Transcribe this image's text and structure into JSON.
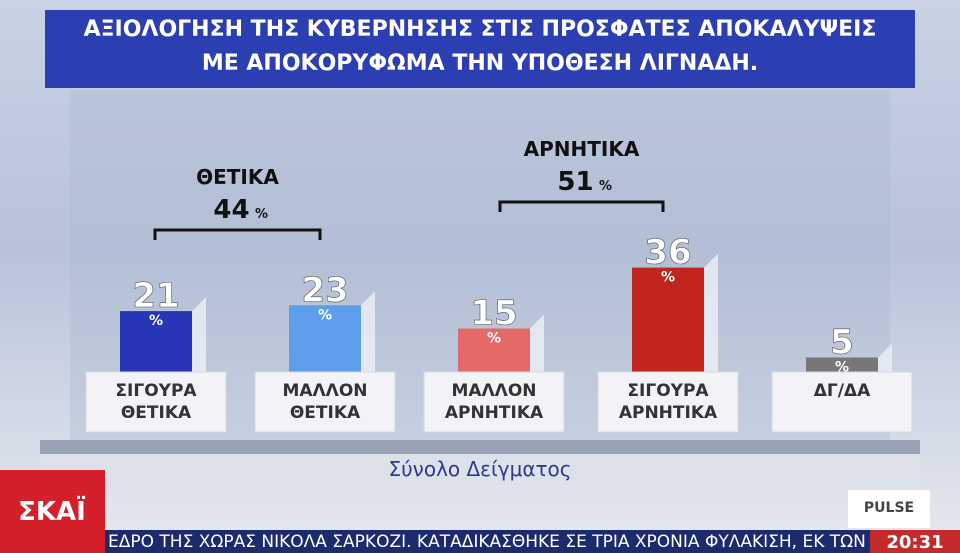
{
  "chart_data": {
    "type": "bar",
    "title": [
      "ΑΞΙΟΛΟΓΗΣΗ ΤΗΣ ΚΥΒΕΡΝΗΣΗΣ ΣΤΙΣ ΠΡΟΣΦΑΤΕΣ ΑΠΟΚΑΛΥΨΕΙΣ",
      "ΜΕ ΑΠΟΚΟΡΥΦΩΜΑ ΤΗΝ ΥΠΟΘΕΣΗ ΛΙΓΝΑΔΗ."
    ],
    "categories": [
      "ΣΙΓΟΥΡΑ ΘΕΤΙΚΑ",
      "ΜΑΛΛΟΝ ΘΕΤΙΚΑ",
      "ΜΑΛΛΟΝ ΑΡΝΗΤΙΚΑ",
      "ΣΙΓΟΥΡΑ ΑΡΝΗΤΙΚΑ",
      "ΔΓ/ΔΑ"
    ],
    "values": [
      21,
      23,
      15,
      36,
      5
    ],
    "unit": "%",
    "colors": [
      "#2836b8",
      "#5c9eec",
      "#e46a68",
      "#c0261e",
      "#777777"
    ],
    "groups": [
      {
        "label": "ΘΕΤΙΚΑ",
        "value": 44
      },
      {
        "label": "ΑΡΝΗΤΙΚΑ",
        "value": 51
      }
    ],
    "subtitle": "Σύνολο Δείγματος"
  },
  "broadcast": {
    "channel": "ΣΚΑΪ",
    "source": "PULSE",
    "ticker": "ΕΔΡΟ ΤΗΣ ΧΩΡΑΣ ΝΙΚΟΛΑ ΣΑΡΚΟΖΙ. ΚΑΤΑΔΙΚΑΣΘΗΚΕ ΣΕ ΤΡΙΑ ΧΡΟΝΙΑ ΦΥΛΑΚΙΣΗ, ΕΚ ΤΩΝ ΟΠ",
    "time": "20:31"
  }
}
